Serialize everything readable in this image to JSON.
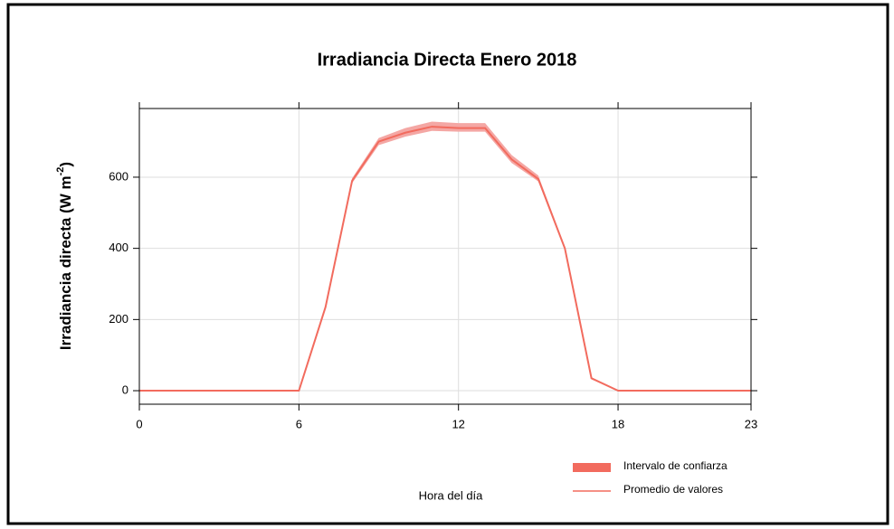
{
  "chart_data": {
    "type": "line",
    "title": "Irradiancia Directa Enero 2018",
    "xlabel": "Hora del día",
    "ylabel": {
      "text": "Irradiancia directa (W m",
      "sup": "-2",
      "end": ")"
    },
    "x": [
      0,
      1,
      2,
      3,
      4,
      5,
      6,
      7,
      8,
      9,
      10,
      11,
      12,
      13,
      14,
      15,
      16,
      17,
      18,
      19,
      20,
      21,
      22,
      23
    ],
    "series": [
      {
        "name": "Promedio de valores",
        "color": "#f26b5e",
        "values": [
          0,
          0,
          0,
          0,
          0,
          0,
          0,
          235,
          590,
          700,
          725,
          742,
          738,
          738,
          650,
          595,
          400,
          35,
          0,
          0,
          0,
          0,
          0,
          0
        ]
      }
    ],
    "band": {
      "name": "Intervalo de confiarza",
      "color": "#f4a7a4",
      "swatch_color": "#f26b5e",
      "lower": [
        0,
        0,
        0,
        0,
        0,
        0,
        0,
        230,
        583,
        690,
        714,
        730,
        728,
        728,
        640,
        588,
        395,
        32,
        0,
        0,
        0,
        0,
        0,
        0
      ],
      "upper": [
        0,
        0,
        0,
        0,
        0,
        0,
        0,
        240,
        597,
        710,
        738,
        756,
        752,
        752,
        662,
        605,
        405,
        38,
        0,
        0,
        0,
        0,
        0,
        0
      ]
    },
    "xlim": [
      0,
      23
    ],
    "xticks": [
      0,
      6,
      12,
      18,
      23
    ],
    "ylim": [
      -38,
      793
    ],
    "yticks": [
      0,
      200,
      400,
      600
    ],
    "grid": true
  }
}
